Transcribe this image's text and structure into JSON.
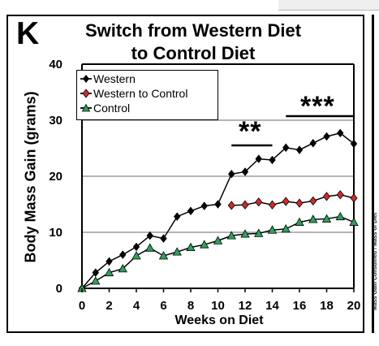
{
  "panel": {
    "letter": "K",
    "title_line1": "Switch from Western Diet",
    "title_line2": "to Control Diet"
  },
  "chart_data": {
    "type": "line",
    "title": "Switch from Western Diet to Control Diet",
    "xlabel": "Weeks on Diet",
    "ylabel": "Body Mass Gain (grams)",
    "xlim": [
      0,
      20
    ],
    "ylim": [
      0,
      40
    ],
    "x_ticks": [
      "0",
      "2",
      "4",
      "6",
      "8",
      "10",
      "12",
      "14",
      "16",
      "18",
      "20"
    ],
    "y_ticks": [
      "0",
      "10",
      "20",
      "30",
      "40"
    ],
    "grid": "horizontal",
    "legend_position": "top-left",
    "x": [
      0,
      1,
      2,
      3,
      4,
      5,
      6,
      7,
      8,
      9,
      10,
      11,
      12,
      13,
      14,
      15,
      16,
      17,
      18,
      19,
      20
    ],
    "series": [
      {
        "name": "Western",
        "color": "#000000",
        "marker": "diamond",
        "values": [
          0,
          2.8,
          4.8,
          6,
          7.4,
          9.4,
          8.9,
          12.8,
          13.8,
          14.7,
          15,
          20.4,
          20.8,
          23.1,
          22.9,
          25.1,
          24.7,
          25.9,
          27.1,
          27.7,
          25.8
        ]
      },
      {
        "name": "Western to Control",
        "color": "#000000",
        "marker_fill": "#d62728",
        "marker": "diamond",
        "values": [
          null,
          null,
          null,
          null,
          null,
          null,
          null,
          null,
          null,
          null,
          null,
          14.8,
          14.9,
          15.4,
          14.9,
          15.5,
          15.2,
          15.6,
          16.4,
          16.7,
          16.1
        ]
      },
      {
        "name": "Control",
        "color": "#000000",
        "marker_fill": "#2ca25f",
        "marker": "triangle",
        "values": [
          0,
          1.3,
          2.8,
          3.5,
          5.8,
          7.2,
          5.8,
          6.5,
          7.3,
          7.8,
          8.5,
          9.4,
          9.7,
          9.8,
          10.4,
          10.6,
          11.8,
          12.3,
          12.4,
          12.8,
          11.8
        ]
      }
    ],
    "annotations": [
      {
        "label": "**",
        "x_start": 11,
        "x_end": 14
      },
      {
        "label": "***",
        "x_start": 15,
        "x_end": 20
      }
    ]
  },
  "right_panel_text": "Mass Gain Consumed / Mass of Diet"
}
